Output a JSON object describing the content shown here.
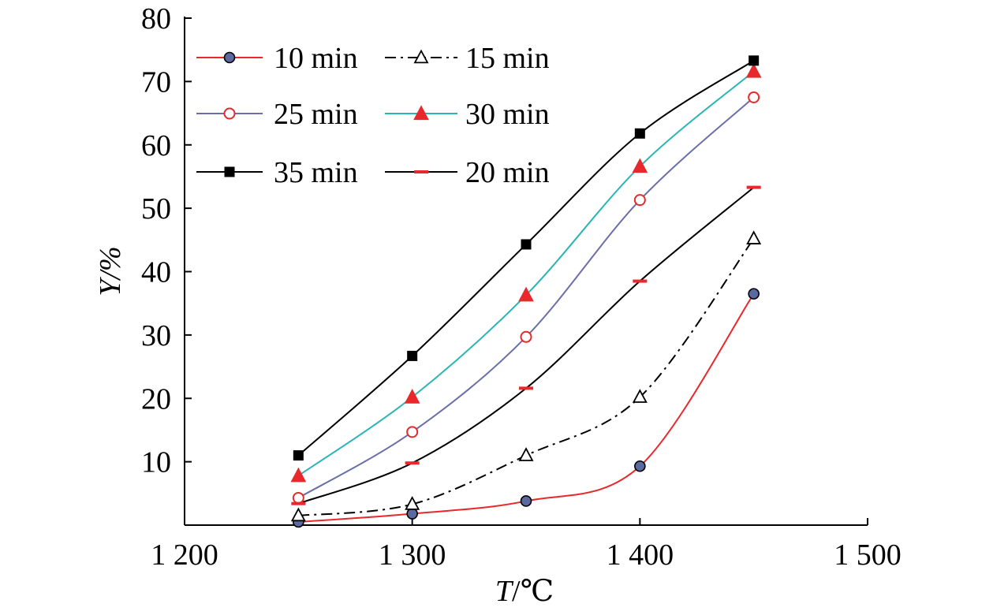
{
  "chart_data": {
    "type": "line",
    "xlabel_var": "T",
    "xlabel_unit": "/℃",
    "ylabel_var": "Y",
    "ylabel_unit": "/%",
    "xlim": [
      1200,
      1500
    ],
    "ylim": [
      0,
      80
    ],
    "xticks": [
      1200,
      1300,
      1400,
      1500
    ],
    "xtick_labels": [
      "1 200",
      "1 300",
      "1 400",
      "1 500"
    ],
    "yticks": [
      10,
      20,
      30,
      40,
      50,
      60,
      70,
      80
    ],
    "ytick_labels": [
      "10",
      "20",
      "30",
      "40",
      "50",
      "60",
      "70",
      "80"
    ],
    "grid": false,
    "legend_position": "top-left",
    "x": [
      1250,
      1300,
      1350,
      1400,
      1450
    ],
    "series": [
      {
        "name": "10 min",
        "values": [
          0.5,
          1.8,
          3.8,
          9.3,
          36.5
        ],
        "line_color": "#e8282b",
        "marker": "circle-filled",
        "marker_fill": "#5a6aa0",
        "marker_stroke": "#000000",
        "dash": "solid"
      },
      {
        "name": "15 min",
        "values": [
          1.5,
          3.3,
          11.0,
          20.2,
          45.2
        ],
        "line_color": "#000000",
        "marker": "triangle-open",
        "marker_fill": "#ffffff",
        "marker_stroke": "#000000",
        "dash": "dashdot"
      },
      {
        "name": "25 min",
        "values": [
          4.3,
          14.7,
          29.7,
          51.3,
          67.5
        ],
        "line_color": "#6b6fa8",
        "marker": "circle-open",
        "marker_fill": "#ffffff",
        "marker_stroke": "#e8282b",
        "dash": "solid"
      },
      {
        "name": "30 min",
        "values": [
          7.8,
          20.2,
          36.3,
          56.6,
          71.6
        ],
        "line_color": "#2ab5b5",
        "marker": "triangle-filled",
        "marker_fill": "#e8282b",
        "marker_stroke": "#e8282b",
        "dash": "solid"
      },
      {
        "name": "35 min",
        "values": [
          11.0,
          26.7,
          44.3,
          61.8,
          73.3
        ],
        "line_color": "#000000",
        "marker": "square-filled",
        "marker_fill": "#000000",
        "marker_stroke": "#000000",
        "dash": "solid"
      },
      {
        "name": "20 min",
        "values": [
          3.4,
          9.8,
          21.6,
          38.5,
          53.3
        ],
        "line_color": "#000000",
        "marker": "dash",
        "marker_fill": "#e8282b",
        "marker_stroke": "#e8282b",
        "dash": "solid"
      }
    ]
  }
}
